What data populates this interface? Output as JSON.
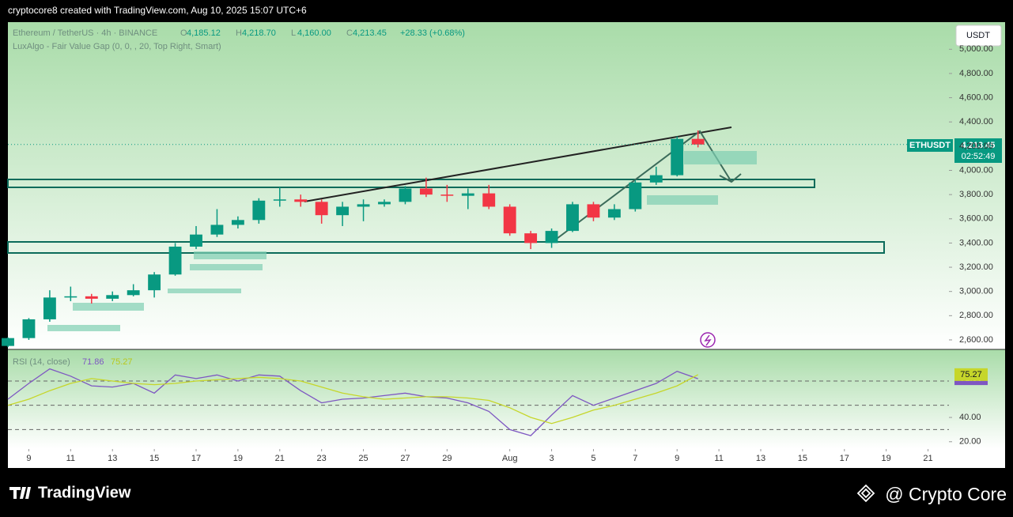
{
  "header": "cryptocore8 created with TradingView.com, Aug 10, 2025 15:07 UTC+6",
  "currency_button": "USDT",
  "footer": {
    "brand": "TradingView",
    "credit": "@ Crypto Core"
  },
  "chart_data": [
    {
      "type": "candlestick",
      "title": "Ethereum / TetherUS · 4h · BINANCE",
      "indicator": "LuxAlgo - Fair Value Gap (0, 0, , 20, Top Right, Smart)",
      "quote": [
        {
          "key": "O",
          "value": "4,185.12"
        },
        {
          "key": "H",
          "value": "4,218.70"
        },
        {
          "key": "L",
          "value": "4,160.00"
        },
        {
          "key": "C",
          "value": "4,213.45"
        }
      ],
      "change": "+28.33 (+0.68%)",
      "symbol": "ETHUSDT",
      "last_price": {
        "value": 4213.45,
        "label": "4,213.45"
      },
      "countdown": "02:52:49",
      "up_color": "#089981",
      "down_color": "#f23645",
      "x": [
        "2025-07-08",
        "2025-07-09",
        "2025-07-10",
        "2025-07-11",
        "2025-07-12",
        "2025-07-13",
        "2025-07-14",
        "2025-07-15",
        "2025-07-16",
        "2025-07-17",
        "2025-07-18",
        "2025-07-19",
        "2025-07-20",
        "2025-07-21",
        "2025-07-22",
        "2025-07-23",
        "2025-07-24",
        "2025-07-25",
        "2025-07-26",
        "2025-07-27",
        "2025-07-28",
        "2025-07-29",
        "2025-07-30",
        "2025-07-31",
        "2025-08-01",
        "2025-08-02",
        "2025-08-03",
        "2025-08-04",
        "2025-08-05",
        "2025-08-06",
        "2025-08-07",
        "2025-08-08",
        "2025-08-09",
        "2025-08-10"
      ],
      "open": [
        2550,
        2615,
        2770,
        2950,
        2960,
        2940,
        2970,
        3010,
        3140,
        3370,
        3470,
        3550,
        3590,
        3750,
        3760,
        3740,
        3630,
        3700,
        3720,
        3740,
        3850,
        3800,
        3790,
        3810,
        3700,
        3480,
        3400,
        3500,
        3720,
        3610,
        3680,
        3900,
        3960,
        4260
      ],
      "high": [
        2620,
        2780,
        3010,
        3040,
        2980,
        3000,
        3060,
        3160,
        3400,
        3540,
        3680,
        3620,
        3770,
        3860,
        3800,
        3760,
        3740,
        3760,
        3760,
        3870,
        3940,
        3880,
        3850,
        3880,
        3720,
        3500,
        3520,
        3740,
        3740,
        3720,
        3920,
        4030,
        4280,
        4330
      ],
      "low": [
        2540,
        2600,
        2750,
        2920,
        2900,
        2920,
        2960,
        2950,
        3130,
        3350,
        3450,
        3520,
        3560,
        3700,
        3700,
        3560,
        3540,
        3580,
        3700,
        3720,
        3780,
        3740,
        3680,
        3680,
        3460,
        3350,
        3360,
        3490,
        3580,
        3590,
        3660,
        3880,
        3950,
        4190
      ],
      "close": [
        2615,
        2770,
        2950,
        2960,
        2940,
        2970,
        3010,
        3140,
        3370,
        3470,
        3550,
        3590,
        3750,
        3760,
        3740,
        3630,
        3700,
        3720,
        3740,
        3850,
        3800,
        3790,
        3810,
        3700,
        3480,
        3400,
        3500,
        3720,
        3610,
        3680,
        3900,
        3960,
        4260,
        4213.45
      ],
      "xlim": [
        "2025-07-08",
        "2025-08-22"
      ],
      "xticks": [
        {
          "value": "2025-07-09",
          "label": "9"
        },
        {
          "value": "2025-07-11",
          "label": "11"
        },
        {
          "value": "2025-07-13",
          "label": "13"
        },
        {
          "value": "2025-07-15",
          "label": "15"
        },
        {
          "value": "2025-07-17",
          "label": "17"
        },
        {
          "value": "2025-07-19",
          "label": "19"
        },
        {
          "value": "2025-07-21",
          "label": "21"
        },
        {
          "value": "2025-07-23",
          "label": "23"
        },
        {
          "value": "2025-07-25",
          "label": "25"
        },
        {
          "value": "2025-07-27",
          "label": "27"
        },
        {
          "value": "2025-07-29",
          "label": "29"
        },
        {
          "value": "2025-08-01",
          "label": "Aug"
        },
        {
          "value": "2025-08-03",
          "label": "3"
        },
        {
          "value": "2025-08-05",
          "label": "5"
        },
        {
          "value": "2025-08-07",
          "label": "7"
        },
        {
          "value": "2025-08-09",
          "label": "9"
        },
        {
          "value": "2025-08-11",
          "label": "11"
        },
        {
          "value": "2025-08-13",
          "label": "13"
        },
        {
          "value": "2025-08-15",
          "label": "15"
        },
        {
          "value": "2025-08-17",
          "label": "17"
        },
        {
          "value": "2025-08-19",
          "label": "19"
        },
        {
          "value": "2025-08-21",
          "label": "21"
        }
      ],
      "ylim": [
        2528,
        5224
      ],
      "yticks": [
        {
          "value": 2600,
          "label": "2,600.00"
        },
        {
          "value": 2800,
          "label": "2,800.00"
        },
        {
          "value": 3000,
          "label": "3,000.00"
        },
        {
          "value": 3200,
          "label": "3,200.00"
        },
        {
          "value": 3400,
          "label": "3,400.00"
        },
        {
          "value": 3600,
          "label": "3,600.00"
        },
        {
          "value": 3800,
          "label": "3,800.00"
        },
        {
          "value": 4000,
          "label": "4,000.00"
        },
        {
          "value": 4200,
          "label": "4,200.00"
        },
        {
          "value": 4400,
          "label": "4,400.00"
        },
        {
          "value": 4600,
          "label": "4,600.00"
        },
        {
          "value": 4800,
          "label": "4,800.00"
        },
        {
          "value": 5000,
          "label": "5,000.00"
        }
      ]
    },
    {
      "type": "line",
      "title": "RSI (14, close)",
      "x": [
        "2025-07-08",
        "2025-07-09",
        "2025-07-10",
        "2025-07-11",
        "2025-07-12",
        "2025-07-13",
        "2025-07-14",
        "2025-07-15",
        "2025-07-16",
        "2025-07-17",
        "2025-07-18",
        "2025-07-19",
        "2025-07-20",
        "2025-07-21",
        "2025-07-22",
        "2025-07-23",
        "2025-07-24",
        "2025-07-25",
        "2025-07-26",
        "2025-07-27",
        "2025-07-28",
        "2025-07-29",
        "2025-07-30",
        "2025-07-31",
        "2025-08-01",
        "2025-08-02",
        "2025-08-03",
        "2025-08-04",
        "2025-08-05",
        "2025-08-06",
        "2025-08-07",
        "2025-08-08",
        "2025-08-09",
        "2025-08-10"
      ],
      "series": [
        {
          "color": "#7e57c2",
          "values": [
            55,
            68,
            80,
            74,
            66,
            65,
            68,
            60,
            75,
            72,
            75,
            70,
            75,
            74,
            62,
            52,
            55,
            56,
            58,
            60,
            57,
            56,
            52,
            45,
            30,
            25,
            42,
            58,
            50,
            56,
            62,
            68,
            78,
            71.86
          ]
        },
        {
          "color": "#c6d62a",
          "values": [
            50,
            55,
            62,
            68,
            72,
            70,
            68,
            67,
            68,
            70,
            71,
            72,
            73,
            72,
            70,
            65,
            60,
            57,
            55,
            56,
            57,
            57,
            56,
            54,
            48,
            40,
            35,
            40,
            46,
            50,
            55,
            60,
            66,
            75.27
          ]
        }
      ],
      "xlim": [
        "2025-07-08",
        "2025-08-22"
      ],
      "ylim": [
        14,
        96
      ],
      "yticks": [
        {
          "value": 20,
          "label": "20.00"
        },
        {
          "value": 40,
          "label": "40.00"
        }
      ],
      "bands": [
        30,
        50,
        70
      ]
    }
  ]
}
